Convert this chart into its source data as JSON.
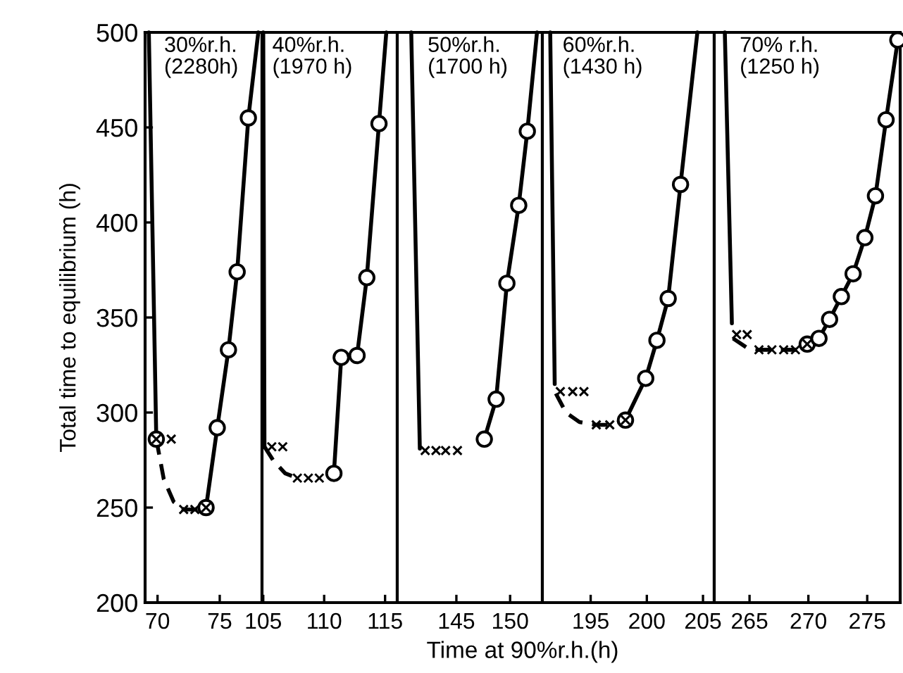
{
  "chart_data": [
    {
      "type": "line",
      "ylabel": "Total time to equilibrium (h)",
      "annotations": [
        "30%r.h.\n(2280h)"
      ],
      "xlim": [
        69,
        78.4
      ],
      "xticks": [
        70,
        75
      ],
      "ylim": [
        200,
        500
      ],
      "yticks": [
        200,
        250,
        300,
        350,
        400,
        450,
        500
      ],
      "series": [
        {
          "type": "line",
          "color": "#000000",
          "line_style": "solid",
          "marker": "none",
          "x": [
            69.3,
            69.9
          ],
          "values": [
            500,
            286
          ]
        },
        {
          "type": "line",
          "color": "#000000",
          "line_style": "dashed",
          "marker": "none",
          "x": [
            69.9,
            70.5,
            71.3,
            72.1,
            73.0,
            73.9
          ],
          "values": [
            286,
            265,
            253,
            249,
            249,
            250
          ]
        },
        {
          "type": "line",
          "color": "#000000",
          "line_style": "solid",
          "marker": "none",
          "x": [
            73.9,
            74.8,
            75.7,
            76.4,
            77.3,
            78.1
          ],
          "values": [
            250,
            292,
            333,
            374,
            455,
            500
          ]
        },
        {
          "type": "scatter",
          "color": "#000000",
          "marker": "circle",
          "x": [
            69.9,
            73.9,
            74.8,
            75.7,
            76.4,
            77.3
          ],
          "values": [
            286,
            250,
            292,
            333,
            374,
            455
          ]
        },
        {
          "type": "scatter",
          "color": "#000000",
          "marker": "cross",
          "x": [
            69.9,
            71.1,
            72.1,
            73.0,
            73.9
          ],
          "values": [
            286,
            286,
            249,
            249,
            250
          ]
        }
      ]
    },
    {
      "type": "line",
      "annotations": [
        "40%r.h.\n(1970 h)"
      ],
      "xlim": [
        104.9,
        116
      ],
      "xticks": [
        105,
        110,
        115
      ],
      "ylim": [
        200,
        500
      ],
      "yticks": [
        200,
        250,
        300,
        350,
        400,
        450,
        500
      ],
      "tick_labels": "x",
      "series": [
        {
          "type": "line",
          "color": "#000000",
          "line_style": "solid",
          "marker": "none",
          "x": [
            105.0,
            105.1
          ],
          "values": [
            500,
            282
          ]
        },
        {
          "type": "line",
          "color": "#000000",
          "line_style": "dashed",
          "marker": "none",
          "x": [
            105.1,
            105.8,
            106.8,
            107.8
          ],
          "values": [
            282,
            275,
            268,
            265.5
          ]
        },
        {
          "type": "line",
          "color": "#000000",
          "line_style": "solid",
          "marker": "none",
          "x": [
            110.8,
            111.4,
            112.7,
            113.5,
            114.5,
            115.1
          ],
          "values": [
            268,
            329,
            330,
            371,
            452,
            500
          ]
        },
        {
          "type": "scatter",
          "color": "#000000",
          "marker": "circle",
          "x": [
            110.8,
            111.4,
            112.7,
            113.5,
            114.5
          ],
          "values": [
            268,
            329,
            330,
            371,
            452
          ]
        },
        {
          "type": "scatter",
          "color": "#000000",
          "marker": "cross",
          "x": [
            105.7,
            106.6,
            107.8,
            108.7,
            109.6
          ],
          "values": [
            282,
            282,
            265.5,
            265.5,
            265.5
          ]
        }
      ]
    },
    {
      "type": "line",
      "annotations": [
        "50%r.h.\n(1700 h)"
      ],
      "xlabel": "Time at 90%r.h.(h)",
      "xlim": [
        139.5,
        153
      ],
      "xticks": [
        145,
        150
      ],
      "ylim": [
        200,
        500
      ],
      "yticks": [
        200,
        250,
        300,
        350,
        400,
        450,
        500
      ],
      "tick_labels": "x",
      "series": [
        {
          "type": "line",
          "color": "#000000",
          "line_style": "solid",
          "marker": "none",
          "x": [
            140.8,
            141.6
          ],
          "values": [
            500,
            281
          ]
        },
        {
          "type": "line",
          "color": "#000000",
          "line_style": "solid",
          "marker": "none",
          "x": [
            147.6,
            148.7,
            149.7,
            150.8,
            151.6,
            152.5
          ],
          "values": [
            286,
            307,
            368,
            409,
            448,
            500
          ]
        },
        {
          "type": "scatter",
          "color": "#000000",
          "marker": "circle",
          "x": [
            147.6,
            148.7,
            149.7,
            150.8,
            151.6
          ],
          "values": [
            286,
            307,
            368,
            409,
            448
          ]
        },
        {
          "type": "scatter",
          "color": "#000000",
          "marker": "cross",
          "x": [
            142.1,
            143.1,
            144.0,
            145.1
          ],
          "values": [
            280,
            280,
            280,
            280
          ]
        }
      ]
    },
    {
      "type": "line",
      "annotations": [
        "60%r.h.\n(1430 h)"
      ],
      "xlim": [
        190.7,
        206
      ],
      "xticks": [
        195,
        200,
        205
      ],
      "ylim": [
        200,
        500
      ],
      "yticks": [
        200,
        250,
        300,
        350,
        400,
        450,
        500
      ],
      "tick_labels": "x",
      "series": [
        {
          "type": "line",
          "color": "#000000",
          "line_style": "solid",
          "marker": "none",
          "x": [
            191.4,
            191.8
          ],
          "values": [
            500,
            315
          ]
        },
        {
          "type": "line",
          "color": "#000000",
          "line_style": "dashed",
          "marker": "none",
          "x": [
            191.9,
            192.8,
            194.0,
            195.5,
            196.7,
            198.1
          ],
          "values": [
            310,
            300,
            295,
            293.5,
            293.5,
            296
          ]
        },
        {
          "type": "line",
          "color": "#000000",
          "line_style": "solid",
          "marker": "none",
          "x": [
            198.1,
            199.9,
            200.9,
            201.9,
            203.0,
            204.5
          ],
          "values": [
            296,
            318,
            338,
            360,
            420,
            500
          ]
        },
        {
          "type": "scatter",
          "color": "#000000",
          "marker": "circle",
          "x": [
            198.1,
            199.9,
            200.9,
            201.9,
            203.0
          ],
          "values": [
            296,
            318,
            338,
            360,
            420
          ]
        },
        {
          "type": "scatter",
          "color": "#000000",
          "marker": "cross",
          "x": [
            192.3,
            193.4,
            194.4,
            195.5,
            196.7,
            198.1
          ],
          "values": [
            311,
            311,
            311,
            293.5,
            293.5,
            296
          ]
        }
      ]
    },
    {
      "type": "line",
      "annotations": [
        "70% r.h.\n(1250 h)"
      ],
      "xlim": [
        262,
        277.8
      ],
      "xticks": [
        265,
        270,
        275
      ],
      "ylim": [
        200,
        500
      ],
      "yticks": [
        200,
        250,
        300,
        350,
        400,
        450,
        500
      ],
      "tick_labels": "x",
      "series": [
        {
          "type": "line",
          "color": "#000000",
          "line_style": "solid",
          "marker": "none",
          "x": [
            262.9,
            263.5
          ],
          "values": [
            500,
            347
          ]
        },
        {
          "type": "line",
          "color": "#000000",
          "line_style": "dashed",
          "marker": "none",
          "x": [
            263.6,
            264.8,
            265.8,
            268.9,
            269.9
          ],
          "values": [
            339,
            334,
            333,
            333,
            336
          ]
        },
        {
          "type": "line",
          "color": "#000000",
          "line_style": "solid",
          "marker": "none",
          "x": [
            269.9,
            270.9,
            271.8,
            272.8,
            273.8,
            274.8,
            275.7,
            276.6,
            277.6
          ],
          "values": [
            336,
            339,
            349,
            361,
            373,
            392,
            414,
            454,
            496
          ]
        },
        {
          "type": "scatter",
          "color": "#000000",
          "marker": "circle",
          "x": [
            269.9,
            270.9,
            271.8,
            272.8,
            273.8,
            274.8,
            275.7,
            276.6,
            277.6
          ],
          "values": [
            336,
            339,
            349,
            361,
            373,
            392,
            414,
            454,
            496
          ]
        },
        {
          "type": "scatter",
          "color": "#000000",
          "marker": "cross",
          "x": [
            263.9,
            264.8,
            265.8,
            266.9,
            267.9,
            268.9,
            269.9
          ],
          "values": [
            341,
            341,
            333,
            333,
            333,
            333,
            336
          ]
        }
      ]
    }
  ]
}
